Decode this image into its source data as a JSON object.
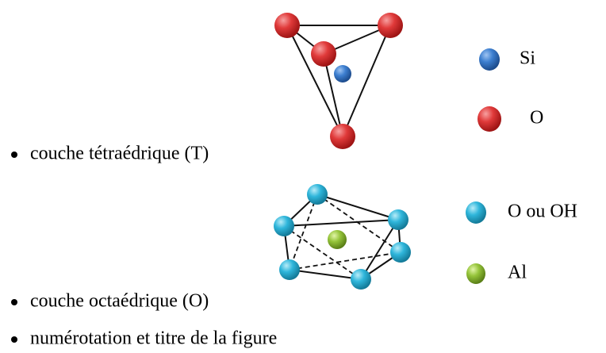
{
  "bullets": [
    "couche tétraédrique (T)",
    "couche octaédrique (O)",
    "numérotation et titre de la figure"
  ],
  "legend": [
    {
      "label": "Si"
    },
    {
      "label": "O"
    },
    {
      "label": "O ou OH"
    },
    {
      "label": "Al"
    }
  ]
}
